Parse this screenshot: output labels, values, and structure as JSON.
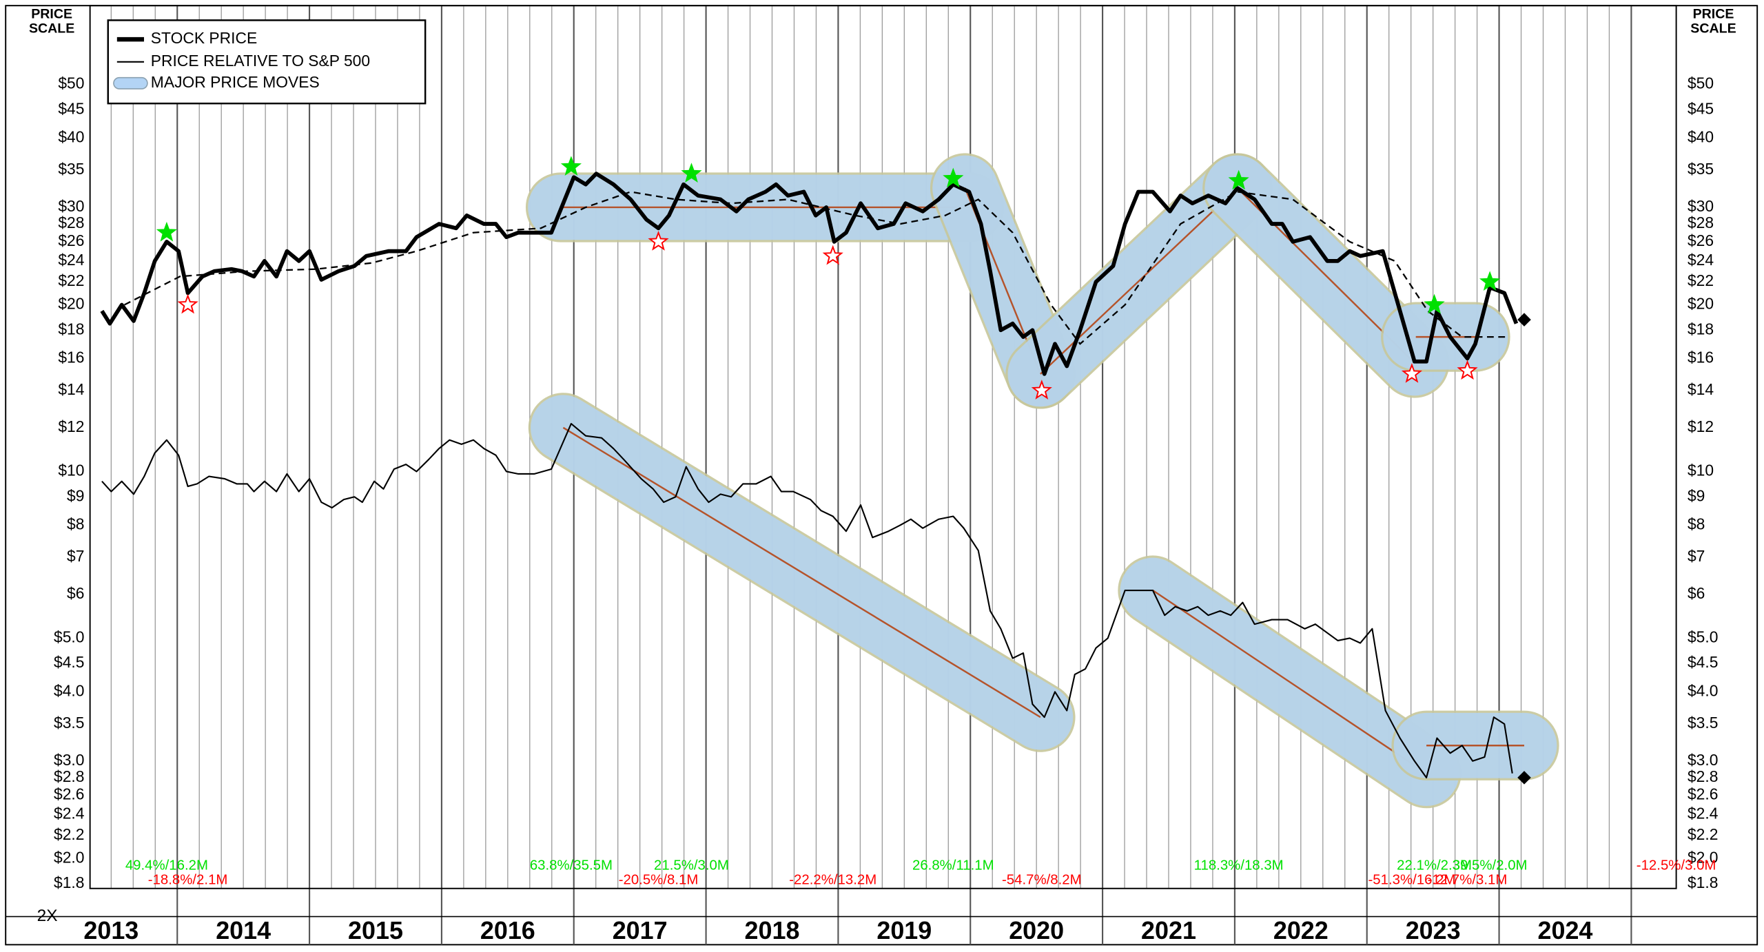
{
  "chart_data": {
    "type": "line",
    "log_y": true,
    "grid": true,
    "price_scale": [
      "PRICE",
      "SCALE"
    ],
    "scale_note": "2X",
    "major_moves_label": "MAJOR PRICE MOVES",
    "open_move_label": "-12.5%/3.0M",
    "xlim": [
      2013.34,
      2025.34
    ],
    "xticks": [
      2014,
      2015,
      2016,
      2017,
      2018,
      2019,
      2020,
      2021,
      2022,
      2023,
      2024,
      2025
    ],
    "year_labels": [
      "2013",
      "2014",
      "2015",
      "2016",
      "2017",
      "2018",
      "2019",
      "2020",
      "2021",
      "2022",
      "2023",
      "2024"
    ],
    "ylim": [
      1.766,
      69.4
    ],
    "yticks": [
      {
        "value": 50,
        "label": "$50"
      },
      {
        "value": 45,
        "label": "$45"
      },
      {
        "value": 40,
        "label": "$40"
      },
      {
        "value": 35,
        "label": "$35"
      },
      {
        "value": 30,
        "label": "$30"
      },
      {
        "value": 28,
        "label": "$28"
      },
      {
        "value": 26,
        "label": "$26"
      },
      {
        "value": 24,
        "label": "$24"
      },
      {
        "value": 22,
        "label": "$22"
      },
      {
        "value": 20,
        "label": "$20"
      },
      {
        "value": 18,
        "label": "$18"
      },
      {
        "value": 16,
        "label": "$16"
      },
      {
        "value": 14,
        "label": "$14"
      },
      {
        "value": 12,
        "label": "$12"
      },
      {
        "value": 10,
        "label": "$10"
      },
      {
        "value": 9,
        "label": "$9"
      },
      {
        "value": 8,
        "label": "$8"
      },
      {
        "value": 7,
        "label": "$7"
      },
      {
        "value": 6,
        "label": "$6"
      },
      {
        "value": 5,
        "label": "$5.0"
      },
      {
        "value": 4.5,
        "label": "$4.5"
      },
      {
        "value": 4,
        "label": "$4.0"
      },
      {
        "value": 3.5,
        "label": "$3.5"
      },
      {
        "value": 3,
        "label": "$3.0"
      },
      {
        "value": 2.8,
        "label": "$2.8"
      },
      {
        "value": 2.6,
        "label": "$2.6"
      },
      {
        "value": 2.4,
        "label": "$2.4"
      },
      {
        "value": 2.2,
        "label": "$2.2"
      },
      {
        "value": 2,
        "label": "$2.0"
      },
      {
        "value": 1.8,
        "label": "$1.8"
      }
    ],
    "series": [
      {
        "name": "STOCK PRICE",
        "color": "#000000",
        "width": 3.5,
        "x": [
          2013.43,
          2013.49,
          2013.58,
          2013.67,
          2013.75,
          2013.83,
          2013.92,
          2014.01,
          2014.08,
          2014.19,
          2014.28,
          2014.41,
          2014.49,
          2014.58,
          2014.66,
          2014.75,
          2014.83,
          2014.92,
          2015.0,
          2015.09,
          2015.22,
          2015.34,
          2015.43,
          2015.6,
          2015.73,
          2015.81,
          2015.98,
          2016.11,
          2016.19,
          2016.32,
          2016.41,
          2016.49,
          2016.58,
          2016.75,
          2016.83,
          2017.0,
          2017.09,
          2017.17,
          2017.3,
          2017.43,
          2017.55,
          2017.64,
          2017.72,
          2017.83,
          2017.94,
          2018.11,
          2018.23,
          2018.32,
          2018.45,
          2018.53,
          2018.62,
          2018.74,
          2018.83,
          2018.91,
          2018.97,
          2019.06,
          2019.17,
          2019.3,
          2019.42,
          2019.51,
          2019.64,
          2019.76,
          2019.87,
          2019.99,
          2020.08,
          2020.15,
          2020.23,
          2020.32,
          2020.4,
          2020.47,
          2020.56,
          2020.64,
          2020.73,
          2020.83,
          2020.95,
          2021.08,
          2021.17,
          2021.27,
          2021.38,
          2021.51,
          2021.59,
          2021.68,
          2021.8,
          2021.93,
          2022.02,
          2022.15,
          2022.28,
          2022.36,
          2022.44,
          2022.57,
          2022.7,
          2022.78,
          2022.87,
          2022.95,
          2023.12,
          2023.25,
          2023.36,
          2023.45,
          2023.53,
          2023.63,
          2023.76,
          2023.82,
          2023.93,
          2024.04,
          2024.13
        ],
        "values": [
          19.5,
          18.5,
          20,
          18.7,
          21,
          24,
          26,
          25,
          21,
          22.5,
          23,
          23.2,
          23,
          22.5,
          24,
          22.5,
          25,
          24,
          25,
          22.2,
          23,
          23.5,
          24.5,
          25,
          25,
          26.5,
          28,
          27.5,
          29,
          28,
          28,
          26.5,
          27,
          27,
          27,
          34,
          33,
          34.5,
          33,
          31,
          28.5,
          27.5,
          29,
          33,
          31.5,
          31,
          29.5,
          31,
          32,
          33,
          31.5,
          32,
          29,
          30,
          26,
          27,
          30.5,
          27.5,
          28,
          30.5,
          29.5,
          31,
          33,
          32,
          28,
          23,
          18,
          18.5,
          17.5,
          18,
          15,
          17,
          15.5,
          18,
          22,
          23.5,
          28,
          32,
          32,
          29.5,
          31.5,
          30.5,
          31.5,
          30.5,
          32.5,
          31,
          28,
          28,
          26,
          26.5,
          24,
          24,
          25,
          24.5,
          25,
          19.5,
          15.8,
          15.8,
          19.5,
          17.5,
          16,
          17,
          21.5,
          21,
          18.5
        ],
        "end_marker": {
          "x": 2024.19,
          "value": 18.8
        },
        "moving_average": {
          "x": [
            2013.6,
            2014.02,
            2014.53,
            2015.05,
            2015.47,
            2015.81,
            2016.24,
            2016.75,
            2017.09,
            2017.43,
            2017.77,
            2018.19,
            2018.62,
            2019.13,
            2019.47,
            2019.81,
            2020.06,
            2020.32,
            2020.61,
            2020.83,
            2021.17,
            2021.59,
            2022.02,
            2022.44,
            2022.87,
            2023.21,
            2023.46,
            2023.72,
            2024.06
          ],
          "values": [
            20,
            22.5,
            23,
            23.2,
            23.8,
            25,
            27,
            27.5,
            30,
            32,
            31,
            30.5,
            31,
            29,
            28,
            29,
            31,
            27,
            20,
            17,
            20,
            28,
            32,
            31,
            26,
            24,
            19.5,
            17.5,
            17.5
          ]
        },
        "major_moves": [
          {
            "x": [
              2016.9,
              2019.99
            ],
            "values": [
              30,
              30
            ]
          },
          {
            "x": [
              2019.96,
              2020.53
            ],
            "values": [
              32.5,
              15
            ]
          },
          {
            "x": [
              2020.53,
              2022.02
            ],
            "values": [
              15,
              32.5
            ]
          },
          {
            "x": [
              2022.02,
              2023.36
            ],
            "values": [
              32.5,
              15.7
            ]
          },
          {
            "x": [
              2023.37,
              2023.82
            ],
            "values": [
              17.5,
              17.5
            ]
          }
        ],
        "highs": {
          "x": [
            2013.92,
            2016.98,
            2017.89,
            2019.87,
            2022.03,
            2023.51,
            2023.93
          ],
          "values": [
            27,
            35.5,
            34.5,
            33.8,
            33.5,
            20,
            22
          ],
          "labels": [
            "49.4%/16.2M",
            "63.8%/35.5M",
            "21.5%/3.0M",
            "26.8%/11.1M",
            "118.3%/18.3M",
            "22.1%/2.3M",
            "39.5%/2.0M"
          ]
        },
        "lows": {
          "x": [
            2014.08,
            2017.64,
            2018.96,
            2020.54,
            2023.34,
            2023.76
          ],
          "values": [
            20,
            26,
            24.5,
            14,
            15,
            15.2
          ],
          "labels": [
            "-18.8%/2.1M",
            "-20.5%/8.1M",
            "-22.2%/13.2M",
            "-54.7%/8.2M",
            "-51.3%/16.2M",
            "-12.7%/3.1M"
          ]
        }
      },
      {
        "name": "PRICE RELATIVE TO S&P 500",
        "color": "#000000",
        "width": 1.3,
        "x": [
          2013.43,
          2013.5,
          2013.58,
          2013.67,
          2013.75,
          2013.83,
          2013.92,
          2014.01,
          2014.08,
          2014.15,
          2014.24,
          2014.36,
          2014.45,
          2014.53,
          2014.58,
          2014.66,
          2014.75,
          2014.83,
          2014.92,
          2015.0,
          2015.09,
          2015.17,
          2015.26,
          2015.34,
          2015.4,
          2015.49,
          2015.56,
          2015.64,
          2015.73,
          2015.81,
          2015.9,
          2015.98,
          2016.06,
          2016.15,
          2016.24,
          2016.32,
          2016.41,
          2016.49,
          2016.58,
          2016.7,
          2016.83,
          2016.98,
          2017.09,
          2017.21,
          2017.3,
          2017.38,
          2017.51,
          2017.6,
          2017.68,
          2017.77,
          2017.85,
          2017.94,
          2018.02,
          2018.11,
          2018.19,
          2018.28,
          2018.38,
          2018.49,
          2018.57,
          2018.66,
          2018.79,
          2018.87,
          2018.96,
          2019.06,
          2019.17,
          2019.26,
          2019.38,
          2019.47,
          2019.55,
          2019.64,
          2019.76,
          2019.87,
          2019.95,
          2020.06,
          2020.15,
          2020.23,
          2020.32,
          2020.4,
          2020.47,
          2020.56,
          2020.64,
          2020.73,
          2020.79,
          2020.87,
          2020.95,
          2021.04,
          2021.17,
          2021.38,
          2021.47,
          2021.55,
          2021.64,
          2021.72,
          2021.8,
          2021.89,
          2021.97,
          2022.06,
          2022.15,
          2022.28,
          2022.4,
          2022.53,
          2022.61,
          2022.78,
          2022.87,
          2022.95,
          2023.04,
          2023.14,
          2023.25,
          2023.36,
          2023.45,
          2023.53,
          2023.63,
          2023.72,
          2023.8,
          2023.89,
          2023.96,
          2024.04,
          2024.1
        ],
        "values": [
          9.6,
          9.2,
          9.6,
          9.1,
          9.8,
          10.8,
          11.4,
          10.7,
          9.4,
          9.5,
          9.8,
          9.7,
          9.5,
          9.5,
          9.2,
          9.6,
          9.2,
          9.9,
          9.2,
          9.7,
          8.8,
          8.6,
          8.9,
          9,
          8.8,
          9.6,
          9.3,
          10.1,
          10.3,
          10,
          10.5,
          11,
          11.4,
          11.2,
          11.4,
          11,
          10.7,
          10,
          9.9,
          9.9,
          10.1,
          12.2,
          11.6,
          11.5,
          11,
          10.5,
          9.7,
          9.3,
          8.8,
          9,
          10.2,
          9.3,
          8.8,
          9.1,
          9,
          9.5,
          9.5,
          9.8,
          9.2,
          9.2,
          8.9,
          8.5,
          8.3,
          7.8,
          8.7,
          7.6,
          7.8,
          8,
          8.2,
          7.9,
          8.2,
          8.3,
          7.9,
          7.2,
          5.6,
          5.2,
          4.6,
          4.7,
          3.8,
          3.6,
          4,
          3.7,
          4.3,
          4.4,
          4.8,
          5,
          6.1,
          6.1,
          5.5,
          5.7,
          5.6,
          5.7,
          5.5,
          5.6,
          5.5,
          5.8,
          5.3,
          5.4,
          5.4,
          5.2,
          5.3,
          4.95,
          5,
          4.9,
          5.2,
          3.7,
          3.3,
          3,
          2.8,
          3.3,
          3.1,
          3.2,
          3,
          3.05,
          3.6,
          3.5,
          2.85
        ],
        "end_marker": {
          "x": 2024.19,
          "value": 2.8
        },
        "major_moves": [
          {
            "x": [
              2016.92,
              2020.53
            ],
            "values": [
              12,
              3.6
            ]
          },
          {
            "x": [
              2021.38,
              2023.45
            ],
            "values": [
              6.1,
              2.85
            ]
          },
          {
            "x": [
              2023.45,
              2024.19
            ],
            "values": [
              3.2,
              3.2
            ]
          }
        ]
      }
    ]
  }
}
